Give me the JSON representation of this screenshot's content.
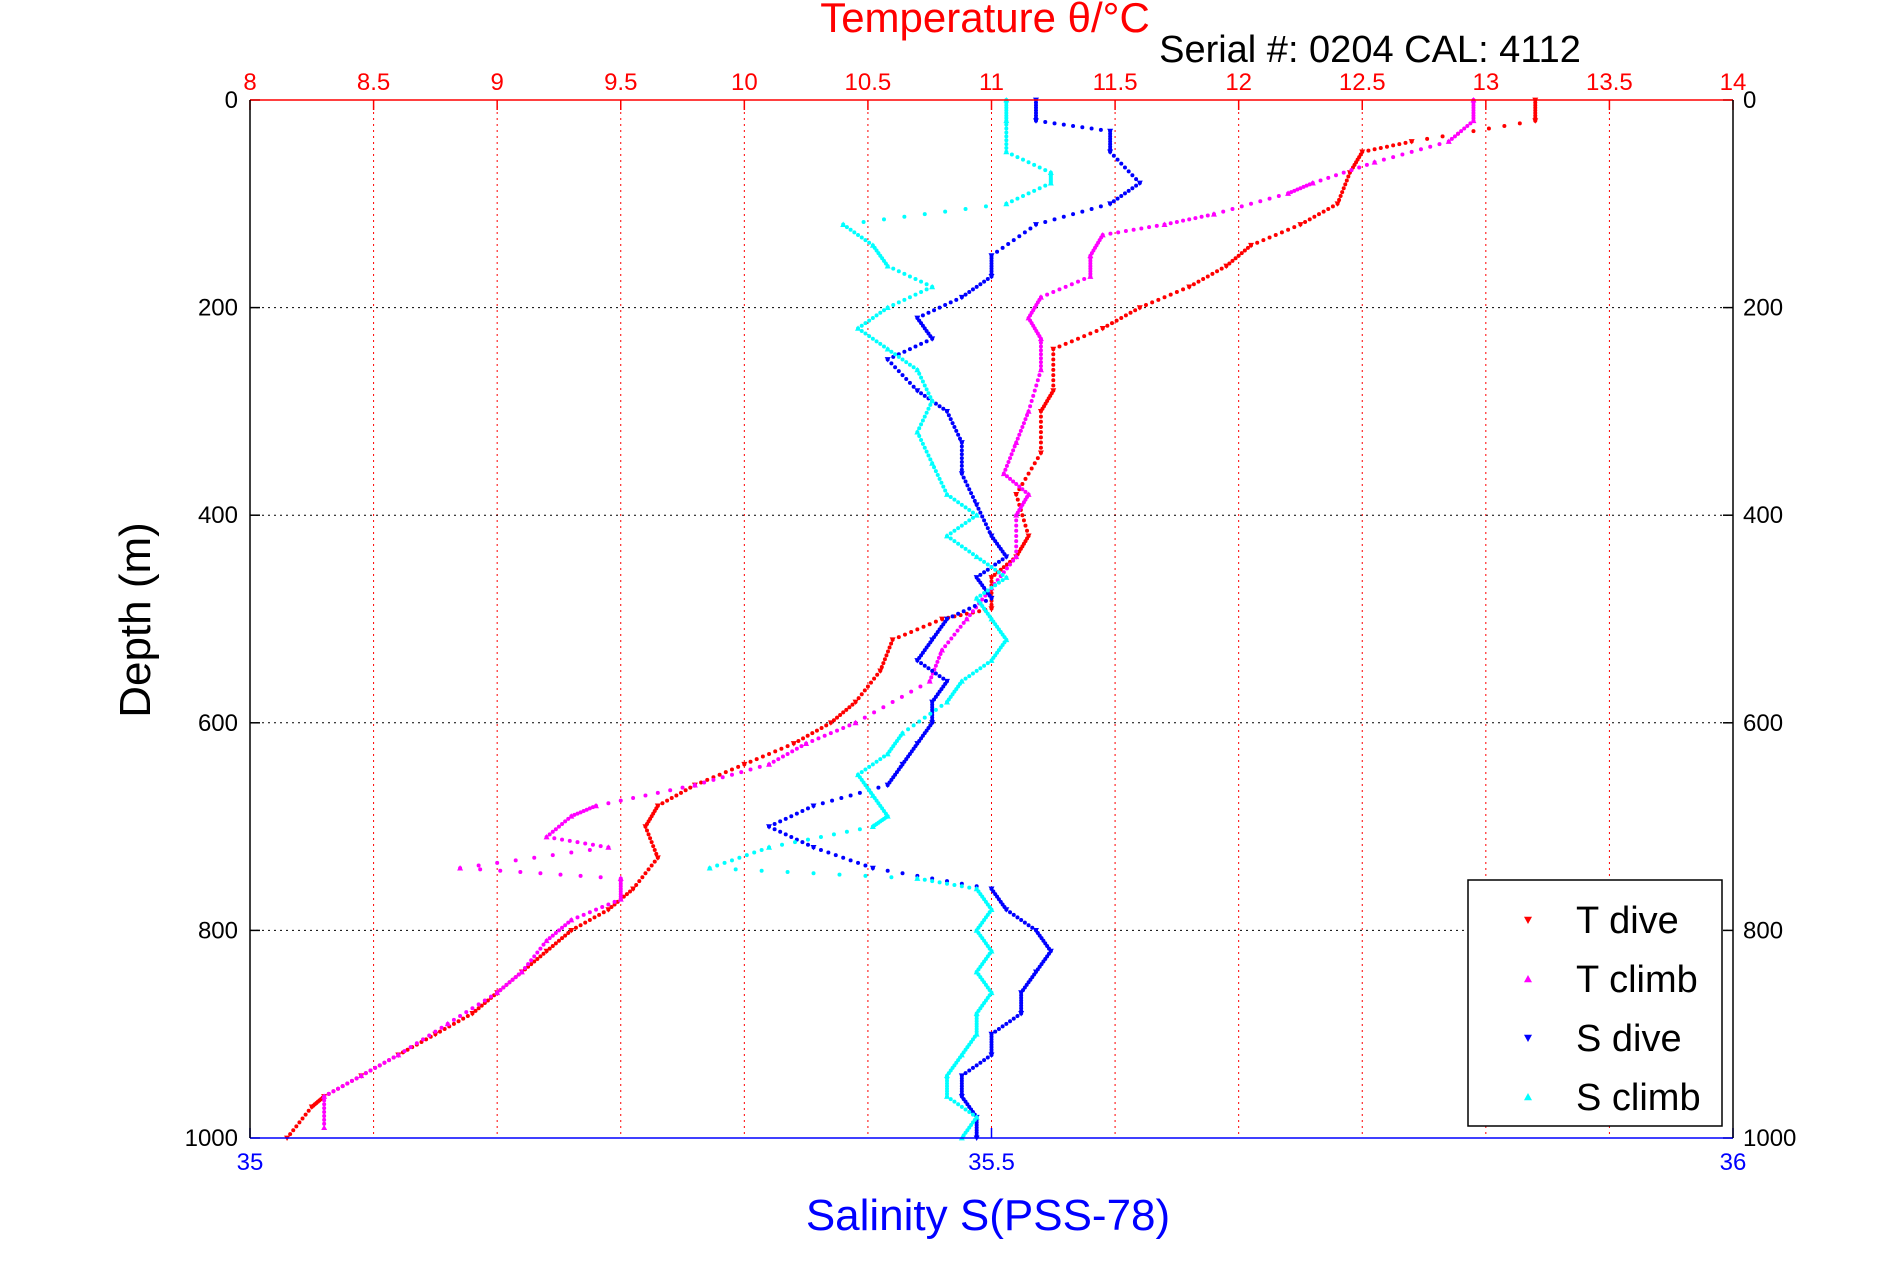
{
  "chart_data": {
    "type": "scatter",
    "title": "Temperature θ/°C",
    "subtitle": "Serial #: 0204  CAL: 4112",
    "xlabel": "Salinity S(PSS-78)",
    "ylabel": "Depth (m)",
    "top_axis": {
      "ticks": [
        "8",
        "8.5",
        "9",
        "9.5",
        "10",
        "10.5",
        "11",
        "11.5",
        "12",
        "12.5",
        "13",
        "13.5",
        "14"
      ],
      "range": [
        8,
        14
      ],
      "color": "#ff0000"
    },
    "bottom_axis": {
      "ticks": [
        "35",
        "35.5",
        "36"
      ],
      "range": [
        35,
        36
      ],
      "color": "#0000ff"
    },
    "left_axis": {
      "ticks": [
        "0",
        "200",
        "400",
        "600",
        "800",
        "1000"
      ],
      "range": [
        0,
        1000
      ],
      "reversed": true
    },
    "right_axis": {
      "ticks": [
        "0",
        "200",
        "400",
        "600",
        "800",
        "1000"
      ],
      "range": [
        0,
        1000
      ],
      "reversed": true
    },
    "grid": true,
    "legend_position": "bottom-right",
    "series": [
      {
        "name": "T dive",
        "axis": "top",
        "color": "#ff0000",
        "marker": "triangle-down",
        "points": [
          [
            13.2,
            0
          ],
          [
            13.2,
            20
          ],
          [
            12.7,
            40
          ],
          [
            12.5,
            50
          ],
          [
            12.45,
            70
          ],
          [
            12.4,
            100
          ],
          [
            12.25,
            120
          ],
          [
            12.05,
            140
          ],
          [
            11.95,
            160
          ],
          [
            11.8,
            180
          ],
          [
            11.6,
            200
          ],
          [
            11.45,
            220
          ],
          [
            11.25,
            240
          ],
          [
            11.25,
            280
          ],
          [
            11.2,
            300
          ],
          [
            11.2,
            340
          ],
          [
            11.1,
            380
          ],
          [
            11.15,
            420
          ],
          [
            11.1,
            440
          ],
          [
            11.0,
            460
          ],
          [
            11.0,
            490
          ],
          [
            10.8,
            500
          ],
          [
            10.6,
            520
          ],
          [
            10.55,
            550
          ],
          [
            10.45,
            580
          ],
          [
            10.35,
            600
          ],
          [
            10.2,
            620
          ],
          [
            10.0,
            640
          ],
          [
            9.8,
            660
          ],
          [
            9.65,
            680
          ],
          [
            9.6,
            700
          ],
          [
            9.65,
            730
          ],
          [
            9.55,
            760
          ],
          [
            9.45,
            780
          ],
          [
            9.3,
            800
          ],
          [
            9.2,
            820
          ],
          [
            9.1,
            840
          ],
          [
            9.0,
            860
          ],
          [
            8.9,
            880
          ],
          [
            8.75,
            900
          ],
          [
            8.6,
            920
          ],
          [
            8.45,
            940
          ],
          [
            8.3,
            960
          ],
          [
            8.25,
            970
          ],
          [
            8.15,
            1000
          ]
        ]
      },
      {
        "name": "T climb",
        "axis": "top",
        "color": "#ff00ff",
        "marker": "triangle-up",
        "points": [
          [
            12.95,
            0
          ],
          [
            12.95,
            20
          ],
          [
            12.85,
            40
          ],
          [
            12.55,
            60
          ],
          [
            12.3,
            80
          ],
          [
            12.2,
            90
          ],
          [
            11.9,
            110
          ],
          [
            11.7,
            120
          ],
          [
            11.45,
            130
          ],
          [
            11.4,
            150
          ],
          [
            11.4,
            170
          ],
          [
            11.2,
            190
          ],
          [
            11.15,
            210
          ],
          [
            11.2,
            230
          ],
          [
            11.2,
            260
          ],
          [
            11.15,
            300
          ],
          [
            11.1,
            330
          ],
          [
            11.05,
            360
          ],
          [
            11.15,
            380
          ],
          [
            11.1,
            400
          ],
          [
            11.1,
            440
          ],
          [
            11.0,
            470
          ],
          [
            10.9,
            500
          ],
          [
            10.8,
            530
          ],
          [
            10.75,
            560
          ],
          [
            10.45,
            600
          ],
          [
            10.25,
            620
          ],
          [
            10.1,
            640
          ],
          [
            9.8,
            660
          ],
          [
            9.4,
            680
          ],
          [
            9.3,
            690
          ],
          [
            9.2,
            710
          ],
          [
            9.45,
            720
          ],
          [
            8.85,
            740
          ],
          [
            9.5,
            750
          ],
          [
            9.5,
            770
          ],
          [
            9.3,
            790
          ],
          [
            9.2,
            810
          ],
          [
            9.1,
            840
          ],
          [
            9.0,
            860
          ],
          [
            8.8,
            890
          ],
          [
            8.6,
            920
          ],
          [
            8.45,
            940
          ],
          [
            8.3,
            960
          ],
          [
            8.3,
            990
          ]
        ]
      },
      {
        "name": "S dive",
        "axis": "bottom",
        "color": "#0000ff",
        "marker": "triangle-down",
        "points": [
          [
            35.53,
            0
          ],
          [
            35.53,
            20
          ],
          [
            35.58,
            30
          ],
          [
            35.58,
            50
          ],
          [
            35.6,
            80
          ],
          [
            35.58,
            100
          ],
          [
            35.53,
            120
          ],
          [
            35.5,
            150
          ],
          [
            35.5,
            170
          ],
          [
            35.48,
            190
          ],
          [
            35.45,
            210
          ],
          [
            35.46,
            230
          ],
          [
            35.43,
            250
          ],
          [
            35.45,
            280
          ],
          [
            35.47,
            300
          ],
          [
            35.48,
            330
          ],
          [
            35.48,
            360
          ],
          [
            35.49,
            390
          ],
          [
            35.5,
            420
          ],
          [
            35.51,
            440
          ],
          [
            35.49,
            460
          ],
          [
            35.5,
            480
          ],
          [
            35.47,
            500
          ],
          [
            35.46,
            520
          ],
          [
            35.45,
            540
          ],
          [
            35.47,
            560
          ],
          [
            35.46,
            580
          ],
          [
            35.46,
            600
          ],
          [
            35.45,
            620
          ],
          [
            35.44,
            640
          ],
          [
            35.43,
            660
          ],
          [
            35.38,
            680
          ],
          [
            35.35,
            700
          ],
          [
            35.38,
            720
          ],
          [
            35.42,
            740
          ],
          [
            35.5,
            760
          ],
          [
            35.51,
            780
          ],
          [
            35.53,
            800
          ],
          [
            35.54,
            820
          ],
          [
            35.53,
            840
          ],
          [
            35.52,
            860
          ],
          [
            35.52,
            880
          ],
          [
            35.5,
            900
          ],
          [
            35.5,
            920
          ],
          [
            35.48,
            940
          ],
          [
            35.48,
            960
          ],
          [
            35.49,
            980
          ],
          [
            35.49,
            1000
          ]
        ]
      },
      {
        "name": "S climb",
        "axis": "bottom",
        "color": "#00ffff",
        "marker": "triangle-up",
        "points": [
          [
            35.51,
            0
          ],
          [
            35.51,
            20
          ],
          [
            35.51,
            50
          ],
          [
            35.54,
            70
          ],
          [
            35.54,
            80
          ],
          [
            35.51,
            100
          ],
          [
            35.4,
            120
          ],
          [
            35.42,
            140
          ],
          [
            35.43,
            160
          ],
          [
            35.46,
            180
          ],
          [
            35.43,
            200
          ],
          [
            35.41,
            220
          ],
          [
            35.43,
            240
          ],
          [
            35.45,
            260
          ],
          [
            35.46,
            290
          ],
          [
            35.45,
            320
          ],
          [
            35.46,
            350
          ],
          [
            35.47,
            380
          ],
          [
            35.49,
            400
          ],
          [
            35.47,
            420
          ],
          [
            35.49,
            440
          ],
          [
            35.51,
            460
          ],
          [
            35.49,
            480
          ],
          [
            35.5,
            500
          ],
          [
            35.51,
            520
          ],
          [
            35.5,
            540
          ],
          [
            35.48,
            560
          ],
          [
            35.47,
            580
          ],
          [
            35.44,
            610
          ],
          [
            35.43,
            630
          ],
          [
            35.41,
            650
          ],
          [
            35.42,
            670
          ],
          [
            35.43,
            690
          ],
          [
            35.42,
            700
          ],
          [
            35.35,
            720
          ],
          [
            35.31,
            740
          ],
          [
            35.45,
            750
          ],
          [
            35.49,
            760
          ],
          [
            35.5,
            780
          ],
          [
            35.49,
            800
          ],
          [
            35.5,
            820
          ],
          [
            35.49,
            840
          ],
          [
            35.5,
            860
          ],
          [
            35.49,
            880
          ],
          [
            35.49,
            900
          ],
          [
            35.48,
            920
          ],
          [
            35.47,
            940
          ],
          [
            35.47,
            960
          ],
          [
            35.49,
            980
          ],
          [
            35.48,
            1000
          ]
        ]
      }
    ]
  }
}
